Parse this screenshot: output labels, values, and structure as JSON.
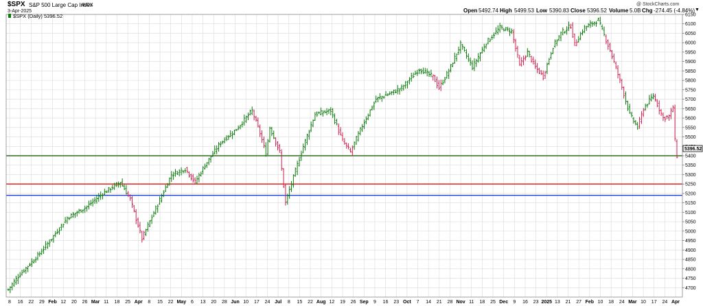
{
  "header": {
    "symbol": "$SPX",
    "name": "S&P 500 Large Cap Index",
    "exchange": "INDX",
    "date": "3-Apr-2025",
    "copyright": "@ StockCharts.com",
    "open_label": "Open",
    "open": "5492.74",
    "high_label": "High",
    "high": "5499.53",
    "low_label": "Low",
    "low": "5390.83",
    "close_label": "Close",
    "close": "5396.52",
    "volume_label": "Volume",
    "volume": "5.0B",
    "chg_label": "Chg",
    "chg": "-274.45 (-4.84%)",
    "legend": "$SPX (Daily) 5396.52"
  },
  "colors": {
    "up": "#0a7a0a",
    "down": "#d01f4f",
    "grid": "#d9d9d9",
    "support_green": "#2f6a1e",
    "support_red": "#e01010",
    "support_blue": "#1c3ff0"
  },
  "chart_data": {
    "type": "ohlc",
    "title": "$SPX S&P 500 Large Cap Index INDX",
    "timeframe": "Daily",
    "ylim": [
      4650,
      6150
    ],
    "y_ticks": [
      4700,
      4750,
      4800,
      4850,
      4900,
      4950,
      5000,
      5050,
      5100,
      5150,
      5200,
      5250,
      5300,
      5350,
      5400,
      5450,
      5500,
      5550,
      5600,
      5650,
      5700,
      5750,
      5800,
      5850,
      5900,
      5950,
      6000,
      6050,
      6100,
      6150
    ],
    "x_ticks": [
      {
        "label": "8",
        "bold": false
      },
      {
        "label": "16",
        "bold": false
      },
      {
        "label": "22",
        "bold": false
      },
      {
        "label": "29",
        "bold": false
      },
      {
        "label": "Feb",
        "bold": true
      },
      {
        "label": "12",
        "bold": false
      },
      {
        "label": "20",
        "bold": false
      },
      {
        "label": "26",
        "bold": false
      },
      {
        "label": "Mar",
        "bold": true
      },
      {
        "label": "11",
        "bold": false
      },
      {
        "label": "18",
        "bold": false
      },
      {
        "label": "25",
        "bold": false
      },
      {
        "label": "Apr",
        "bold": true
      },
      {
        "label": "8",
        "bold": false
      },
      {
        "label": "15",
        "bold": false
      },
      {
        "label": "22",
        "bold": false
      },
      {
        "label": "May",
        "bold": true
      },
      {
        "label": "6",
        "bold": false
      },
      {
        "label": "13",
        "bold": false
      },
      {
        "label": "20",
        "bold": false
      },
      {
        "label": "28",
        "bold": false
      },
      {
        "label": "Jun",
        "bold": true
      },
      {
        "label": "10",
        "bold": false
      },
      {
        "label": "17",
        "bold": false
      },
      {
        "label": "24",
        "bold": false
      },
      {
        "label": "Jul",
        "bold": true
      },
      {
        "label": "8",
        "bold": false
      },
      {
        "label": "15",
        "bold": false
      },
      {
        "label": "22",
        "bold": false
      },
      {
        "label": "Aug",
        "bold": true
      },
      {
        "label": "12",
        "bold": false
      },
      {
        "label": "19",
        "bold": false
      },
      {
        "label": "26",
        "bold": false
      },
      {
        "label": "Sep",
        "bold": true
      },
      {
        "label": "9",
        "bold": false
      },
      {
        "label": "16",
        "bold": false
      },
      {
        "label": "23",
        "bold": false
      },
      {
        "label": "Oct",
        "bold": true
      },
      {
        "label": "7",
        "bold": false
      },
      {
        "label": "14",
        "bold": false
      },
      {
        "label": "21",
        "bold": false
      },
      {
        "label": "28",
        "bold": false
      },
      {
        "label": "Nov",
        "bold": true
      },
      {
        "label": "11",
        "bold": false
      },
      {
        "label": "18",
        "bold": false
      },
      {
        "label": "25",
        "bold": false
      },
      {
        "label": "Dec",
        "bold": true
      },
      {
        "label": "9",
        "bold": false
      },
      {
        "label": "16",
        "bold": false
      },
      {
        "label": "23",
        "bold": false
      },
      {
        "label": "2025",
        "bold": true
      },
      {
        "label": "13",
        "bold": false
      },
      {
        "label": "21",
        "bold": false
      },
      {
        "label": "27",
        "bold": false
      },
      {
        "label": "Feb",
        "bold": true
      },
      {
        "label": "10",
        "bold": false
      },
      {
        "label": "18",
        "bold": false
      },
      {
        "label": "24",
        "bold": false
      },
      {
        "label": "Mar",
        "bold": true
      },
      {
        "label": "10",
        "bold": false
      },
      {
        "label": "17",
        "bold": false
      },
      {
        "label": "24",
        "bold": false
      },
      {
        "label": "Apr",
        "bold": true
      }
    ],
    "support_lines": [
      {
        "value": 5400,
        "color": "#2f6a1e"
      },
      {
        "value": 5250,
        "color": "#e01010"
      },
      {
        "value": 5190,
        "color": "#1c3ff0"
      }
    ],
    "last_price": 5396.52,
    "last_label": "5396.52",
    "keypoints": [
      [
        0,
        4690
      ],
      [
        5,
        4760
      ],
      [
        15,
        4870
      ],
      [
        22,
        4960
      ],
      [
        30,
        5070
      ],
      [
        40,
        5130
      ],
      [
        48,
        5200
      ],
      [
        57,
        5260
      ],
      [
        62,
        5170
      ],
      [
        68,
        4960
      ],
      [
        75,
        5120
      ],
      [
        83,
        5300
      ],
      [
        90,
        5330
      ],
      [
        95,
        5260
      ],
      [
        100,
        5350
      ],
      [
        108,
        5470
      ],
      [
        116,
        5540
      ],
      [
        124,
        5640
      ],
      [
        128,
        5520
      ],
      [
        131,
        5410
      ],
      [
        133,
        5550
      ],
      [
        138,
        5420
      ],
      [
        141,
        5150
      ],
      [
        146,
        5320
      ],
      [
        150,
        5450
      ],
      [
        156,
        5620
      ],
      [
        164,
        5640
      ],
      [
        170,
        5480
      ],
      [
        174,
        5420
      ],
      [
        180,
        5560
      ],
      [
        187,
        5700
      ],
      [
        194,
        5730
      ],
      [
        200,
        5760
      ],
      [
        209,
        5860
      ],
      [
        216,
        5820
      ],
      [
        219,
        5760
      ],
      [
        224,
        5850
      ],
      [
        230,
        5990
      ],
      [
        236,
        5870
      ],
      [
        243,
        6000
      ],
      [
        250,
        6080
      ],
      [
        256,
        6060
      ],
      [
        260,
        5880
      ],
      [
        264,
        5950
      ],
      [
        268,
        5870
      ],
      [
        272,
        5820
      ],
      [
        277,
        5980
      ],
      [
        281,
        6050
      ],
      [
        286,
        6090
      ],
      [
        288,
        5990
      ],
      [
        293,
        6080
      ],
      [
        300,
        6120
      ],
      [
        306,
        5960
      ],
      [
        311,
        5800
      ],
      [
        316,
        5620
      ],
      [
        320,
        5550
      ],
      [
        323,
        5650
      ],
      [
        328,
        5720
      ],
      [
        333,
        5600
      ],
      [
        336,
        5610
      ],
      [
        338,
        5660
      ],
      [
        339,
        5480
      ],
      [
        340,
        5400
      ]
    ],
    "down_segments": [
      [
        61,
        69
      ],
      [
        91,
        95
      ],
      [
        125,
        130
      ],
      [
        136,
        141
      ],
      [
        168,
        175
      ],
      [
        216,
        220
      ],
      [
        257,
        263
      ],
      [
        266,
        273
      ],
      [
        286,
        289
      ],
      [
        304,
        313
      ],
      [
        321,
        323
      ],
      [
        329,
        340
      ]
    ],
    "num_bars": 341
  }
}
